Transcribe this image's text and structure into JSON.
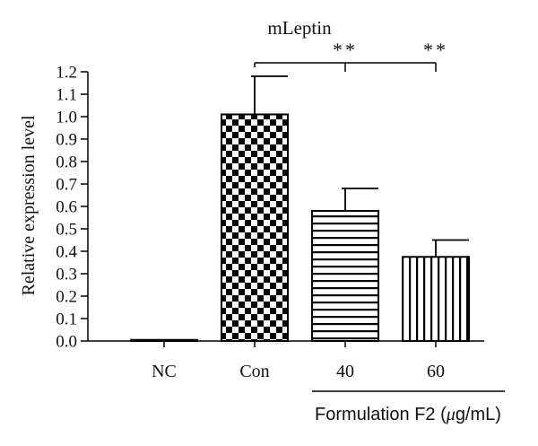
{
  "chart_data": {
    "type": "bar",
    "title": "mLeptin",
    "ylabel": "Relative expression level",
    "xlabel": "",
    "ylim": [
      0,
      1.2
    ],
    "yticks": [
      "0.0",
      "0.1",
      "0.2",
      "0.3",
      "0.4",
      "0.5",
      "0.6",
      "0.7",
      "0.8",
      "0.9",
      "1.0",
      "1.1",
      "1.2"
    ],
    "categories": [
      "NC",
      "Con",
      "40",
      "60"
    ],
    "values": [
      0.005,
      1.01,
      0.58,
      0.375
    ],
    "errors": [
      0,
      0.17,
      0.1,
      0.075
    ],
    "patterns": [
      "solid",
      "checker",
      "horizontal",
      "vertical"
    ],
    "significance": [
      {
        "label": "**",
        "category": "40"
      },
      {
        "label": "**",
        "category": "60"
      }
    ],
    "group_label": {
      "text_prefix": "Formulation F2 (",
      "mu": "μ",
      "text_suffix": "g/mL)",
      "categories": [
        "40",
        "60"
      ]
    },
    "grid": false,
    "legend": "none",
    "bar_color": "#000000"
  }
}
